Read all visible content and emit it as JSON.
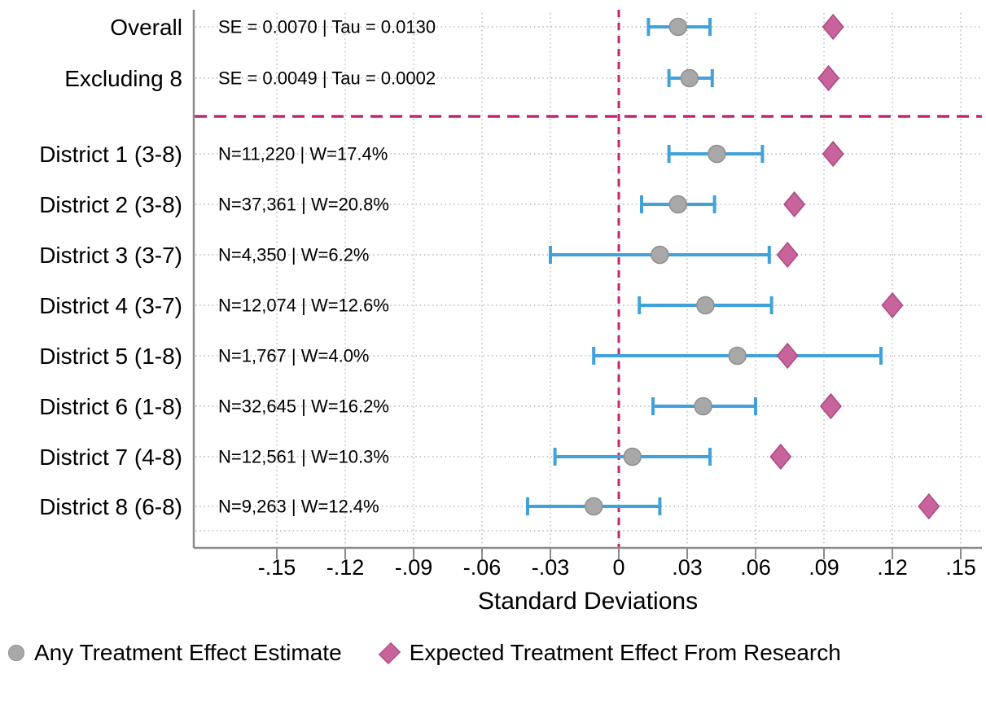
{
  "chart_data": {
    "type": "forest",
    "xlabel": "Standard Deviations",
    "xlim": [
      -0.186,
      0.159
    ],
    "xticks": [
      -0.15,
      -0.12,
      -0.09,
      -0.06,
      -0.03,
      0,
      0.03,
      0.06,
      0.09,
      0.12,
      0.15
    ],
    "xtick_labels": [
      "-.15",
      "-.12",
      "-.09",
      "-.06",
      "-.03",
      "0",
      ".03",
      ".06",
      ".09",
      ".12",
      ".15"
    ],
    "grid": true,
    "zero_line": 0,
    "summary_rows": 2,
    "rows": [
      {
        "label": "Overall",
        "annotation": "SE = 0.0070 | Tau = 0.0130",
        "estimate": 0.026,
        "ci_low": 0.013,
        "ci_high": 0.04,
        "expected": 0.094
      },
      {
        "label": "Excluding 8",
        "annotation": "SE = 0.0049 | Tau = 0.0002",
        "estimate": 0.031,
        "ci_low": 0.022,
        "ci_high": 0.041,
        "expected": 0.092
      },
      {
        "label": "District 1 (3-8)",
        "annotation": "N=11,220 | W=17.4%",
        "estimate": 0.043,
        "ci_low": 0.022,
        "ci_high": 0.063,
        "expected": 0.094
      },
      {
        "label": "District 2 (3-8)",
        "annotation": "N=37,361 | W=20.8%",
        "estimate": 0.026,
        "ci_low": 0.01,
        "ci_high": 0.042,
        "expected": 0.077
      },
      {
        "label": "District 3 (3-7)",
        "annotation": "N=4,350 | W=6.2%",
        "estimate": 0.018,
        "ci_low": -0.03,
        "ci_high": 0.066,
        "expected": 0.074
      },
      {
        "label": "District 4 (3-7)",
        "annotation": "N=12,074 | W=12.6%",
        "estimate": 0.038,
        "ci_low": 0.009,
        "ci_high": 0.067,
        "expected": 0.12
      },
      {
        "label": "District 5 (1-8)",
        "annotation": "N=1,767 | W=4.0%",
        "estimate": 0.052,
        "ci_low": -0.011,
        "ci_high": 0.115,
        "expected": 0.074
      },
      {
        "label": "District 6 (1-8)",
        "annotation": "N=32,645 | W=16.2%",
        "estimate": 0.037,
        "ci_low": 0.015,
        "ci_high": 0.06,
        "expected": 0.093
      },
      {
        "label": "District 7 (4-8)",
        "annotation": "N=12,561 | W=10.3%",
        "estimate": 0.006,
        "ci_low": -0.028,
        "ci_high": 0.04,
        "expected": 0.071
      },
      {
        "label": "District 8 (6-8)",
        "annotation": "N=9,263 | W=12.4%",
        "estimate": -0.011,
        "ci_low": -0.04,
        "ci_high": 0.018,
        "expected": 0.136
      }
    ],
    "legend": [
      {
        "label": "Any Treatment Effect Estimate",
        "marker": "circle"
      },
      {
        "label": "Expected Treatment Effect From Research",
        "marker": "diamond"
      }
    ]
  },
  "colors": {
    "ci_blue": "#41a2da",
    "estimate_gray_fill": "#a8a8a8",
    "estimate_gray_stroke": "#8f8f8f",
    "expected_pink_fill": "#c9639b",
    "expected_pink_stroke": "#aa4a82",
    "reference_magenta": "#c42572",
    "spine_gray": "#8a8a8a",
    "grid_dot_gray": "#b3b3b3",
    "text_black": "#000000"
  }
}
